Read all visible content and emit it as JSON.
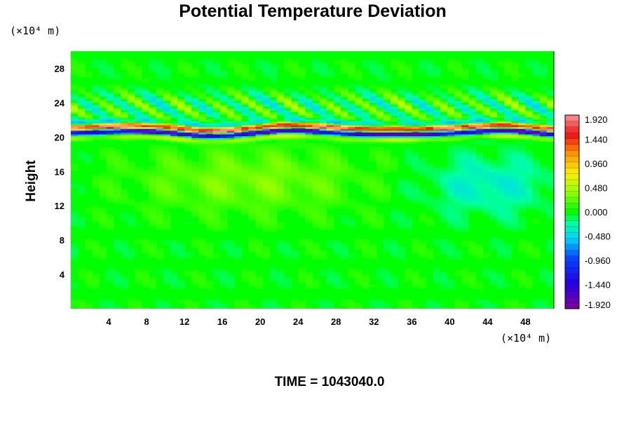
{
  "chart_data": {
    "type": "heatmap",
    "title": "Potential Temperature Deviation",
    "ylabel": "Height",
    "xlabel": "",
    "x_unit": "(×10⁴ m)",
    "y_unit": "(×10⁴ m)",
    "xlim": [
      0,
      51
    ],
    "ylim": [
      0,
      30
    ],
    "x_ticks": [
      4,
      8,
      12,
      16,
      20,
      24,
      28,
      32,
      36,
      40,
      44,
      48
    ],
    "y_ticks": [
      4,
      8,
      12,
      16,
      20,
      24,
      28
    ],
    "colorbar": {
      "range": [
        -1.92,
        1.92
      ],
      "tick_values": [
        1.92,
        1.44,
        0.96,
        0.48,
        0.0,
        -0.48,
        -0.96,
        -1.44,
        -1.92
      ],
      "tick_labels": [
        "1.920",
        "1.440",
        "0.960",
        "0.480",
        "0.000",
        "-0.480",
        "-0.960",
        "-1.440",
        "-1.920"
      ],
      "levels": 33
    },
    "features": [
      {
        "desc": "background field",
        "value": 0.0
      },
      {
        "desc": "strong oscillation band",
        "y_center": 20.8,
        "y_range": [
          19.8,
          22.5
        ],
        "min": -1.92,
        "max": 1.92
      },
      {
        "desc": "weak positive patch",
        "x_range": [
          8,
          30
        ],
        "y_range": [
          12,
          18
        ],
        "value": 0.3
      },
      {
        "desc": "weak negative patch",
        "x_range": [
          38,
          50
        ],
        "y_range": [
          12,
          17
        ],
        "value": -0.35
      }
    ]
  },
  "footer": {
    "time_label": "TIME = 1043040.0"
  },
  "colors": {
    "background": "#00ff00",
    "frame": "#000000"
  }
}
